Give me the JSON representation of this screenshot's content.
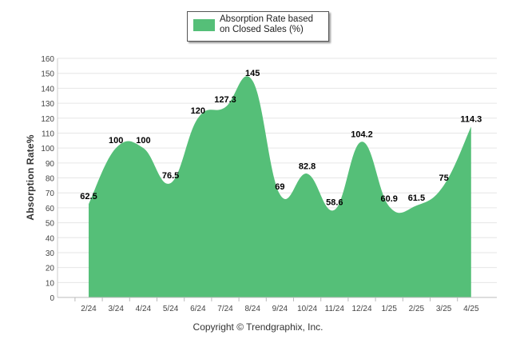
{
  "chart_data": {
    "type": "area",
    "categories": [
      "2/24",
      "3/24",
      "4/24",
      "5/24",
      "6/24",
      "7/24",
      "8/24",
      "9/24",
      "10/24",
      "11/24",
      "12/24",
      "1/25",
      "2/25",
      "3/25",
      "4/25"
    ],
    "series": [
      {
        "name": "Absorption Rate based on Closed Sales (%)",
        "values": [
          62.5,
          100,
          100,
          76.5,
          120,
          127.3,
          145,
          69,
          82.8,
          58.6,
          104.2,
          60.9,
          61.5,
          75,
          114.3
        ]
      }
    ],
    "ylabel": "Absorption Rate%",
    "xlabel": "",
    "ylim": [
      0,
      160
    ],
    "yticks": [
      0,
      10,
      20,
      30,
      40,
      50,
      60,
      70,
      80,
      90,
      100,
      110,
      120,
      130,
      140,
      150,
      160
    ],
    "grid": true,
    "legend": "top-center",
    "color": "#55bf78"
  },
  "legend": {
    "label": "Absorption Rate based on Closed Sales (%)"
  },
  "footer": {
    "copyright": "Copyright © Trendgraphix, Inc."
  }
}
